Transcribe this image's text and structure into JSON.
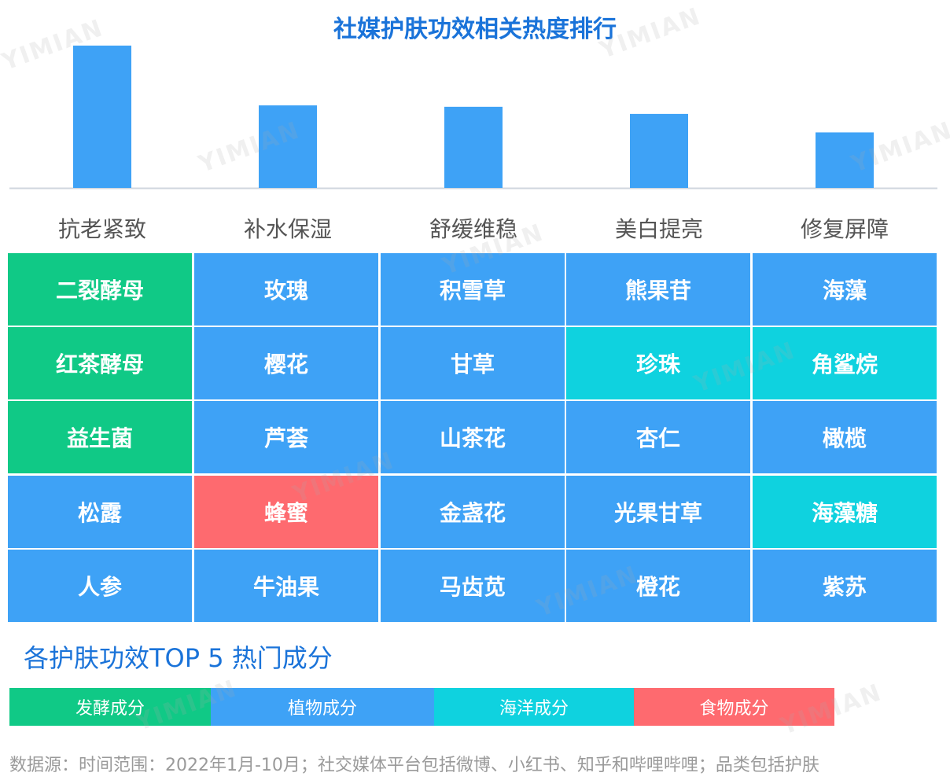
{
  "title": "社媒护肤功效相关热度排行",
  "watermark": "YIMIAN",
  "chart_data": {
    "type": "bar",
    "categories": [
      "抗老紧致",
      "补水保湿",
      "舒缓维稳",
      "美白提亮",
      "修复屏障"
    ],
    "values": [
      100,
      58,
      57,
      52,
      39
    ],
    "title": "社媒护肤功效相关热度排行",
    "xlabel": "",
    "ylabel": "",
    "ylim": [
      0,
      100
    ],
    "grid": false,
    "bar_color": "#3ea2f6"
  },
  "ingredient_table": {
    "rows": [
      [
        {
          "name": "二裂酵母",
          "type": "ferment"
        },
        {
          "name": "玫瑰",
          "type": "plant"
        },
        {
          "name": "积雪草",
          "type": "plant"
        },
        {
          "name": "熊果苷",
          "type": "plant"
        },
        {
          "name": "海藻",
          "type": "plant"
        }
      ],
      [
        {
          "name": "红茶酵母",
          "type": "ferment"
        },
        {
          "name": "樱花",
          "type": "plant"
        },
        {
          "name": "甘草",
          "type": "plant"
        },
        {
          "name": "珍珠",
          "type": "ocean"
        },
        {
          "name": "角鲨烷",
          "type": "ocean"
        }
      ],
      [
        {
          "name": "益生菌",
          "type": "ferment"
        },
        {
          "name": "芦荟",
          "type": "plant"
        },
        {
          "name": "山茶花",
          "type": "plant"
        },
        {
          "name": "杏仁",
          "type": "plant"
        },
        {
          "name": "橄榄",
          "type": "plant"
        }
      ],
      [
        {
          "name": "松露",
          "type": "plant"
        },
        {
          "name": "蜂蜜",
          "type": "food"
        },
        {
          "name": "金盏花",
          "type": "plant"
        },
        {
          "name": "光果甘草",
          "type": "plant"
        },
        {
          "name": "海藻糖",
          "type": "ocean"
        }
      ],
      [
        {
          "name": "人参",
          "type": "plant"
        },
        {
          "name": "牛油果",
          "type": "plant"
        },
        {
          "name": "马齿苋",
          "type": "plant"
        },
        {
          "name": "橙花",
          "type": "plant"
        },
        {
          "name": "紫苏",
          "type": "plant"
        }
      ]
    ]
  },
  "colors": {
    "ferment": "#10c986",
    "plant": "#3ea2f6",
    "ocean": "#0fd2df",
    "food": "#fe6a6f"
  },
  "subtitle": "各护肤功效TOP 5 热门成分",
  "legend": [
    {
      "label": "发酵成分",
      "type": "ferment"
    },
    {
      "label": "植物成分",
      "type": "plant"
    },
    {
      "label": "海洋成分",
      "type": "ocean"
    },
    {
      "label": "食物成分",
      "type": "food"
    }
  ],
  "source_note": "数据源：时间范围：2022年1月-10月；社交媒体平台包括微博、小红书、知乎和哔哩哔哩；品类包括护肤"
}
